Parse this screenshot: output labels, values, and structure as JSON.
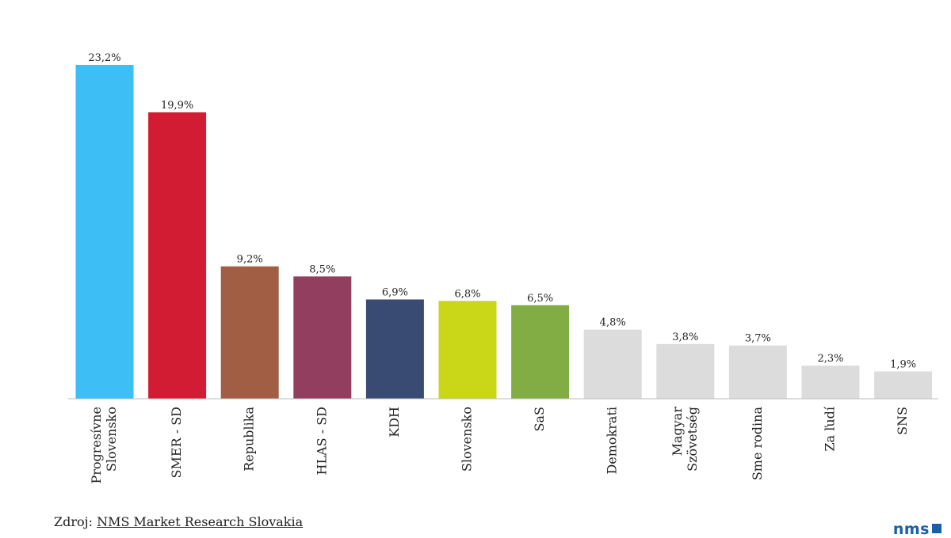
{
  "chart_data": {
    "type": "bar",
    "categories": [
      [
        "Progresívne",
        "Slovensko"
      ],
      [
        "SMER - SD"
      ],
      [
        "Republika"
      ],
      [
        "HLAS - SD"
      ],
      [
        "KDH"
      ],
      [
        "Slovensko"
      ],
      [
        "SaS"
      ],
      [
        "Demokrati"
      ],
      [
        "Magyar",
        "Szövetség"
      ],
      [
        "Sme rodina"
      ],
      [
        "Za ľudí"
      ],
      [
        "SNS"
      ]
    ],
    "values": [
      23.2,
      19.9,
      9.2,
      8.5,
      6.9,
      6.8,
      6.5,
      4.8,
      3.8,
      3.7,
      2.3,
      1.9
    ],
    "value_labels": [
      "23,2%",
      "19,9%",
      "9,2%",
      "8,5%",
      "6,9%",
      "6,8%",
      "6,5%",
      "4,8%",
      "3,8%",
      "3,7%",
      "2,3%",
      "1,9%"
    ],
    "colors": [
      "#3dbef5",
      "#d21c33",
      "#a25e45",
      "#923f5f",
      "#394a73",
      "#c9d718",
      "#82ad45",
      "#dcdcdc",
      "#dcdcdc",
      "#dcdcdc",
      "#dcdcdc",
      "#dcdcdc"
    ],
    "ylim": [
      0,
      23.2
    ],
    "grid": false,
    "title": "",
    "xlabel": "",
    "ylabel": ""
  },
  "source": {
    "prefix": "Zdroj: ",
    "link_text": "NMS Market Research Slovakia"
  },
  "logo": {
    "text": "nms"
  }
}
